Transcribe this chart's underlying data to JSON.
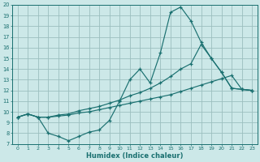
{
  "xlabel": "Humidex (Indice chaleur)",
  "xlim": [
    -0.5,
    23.5
  ],
  "ylim": [
    7,
    20
  ],
  "xticks": [
    0,
    1,
    2,
    3,
    4,
    5,
    6,
    7,
    8,
    9,
    10,
    11,
    12,
    13,
    14,
    15,
    16,
    17,
    18,
    19,
    20,
    21,
    22,
    23
  ],
  "yticks": [
    7,
    8,
    9,
    10,
    11,
    12,
    13,
    14,
    15,
    16,
    17,
    18,
    19,
    20
  ],
  "bg_color": "#cce8e8",
  "grid_color": "#9bbfbf",
  "line_color": "#1a7070",
  "line1_x": [
    0,
    1,
    2,
    3,
    4,
    5,
    6,
    7,
    8,
    9,
    10,
    11,
    12,
    13,
    14,
    15,
    16,
    17,
    18,
    19,
    20,
    21,
    22,
    23
  ],
  "line1_y": [
    9.5,
    9.8,
    9.5,
    8.0,
    7.7,
    7.3,
    7.7,
    8.1,
    8.3,
    9.2,
    11.0,
    13.0,
    14.0,
    12.7,
    15.5,
    19.3,
    19.8,
    18.5,
    16.5,
    15.0,
    13.7,
    12.2,
    12.1,
    12.0
  ],
  "line2_x": [
    0,
    1,
    2,
    3,
    4,
    5,
    6,
    7,
    8,
    9,
    10,
    11,
    12,
    13,
    14,
    15,
    16,
    17,
    18,
    19,
    20,
    21,
    22,
    23
  ],
  "line2_y": [
    9.5,
    9.8,
    9.5,
    9.5,
    9.7,
    9.8,
    10.1,
    10.3,
    10.5,
    10.8,
    11.1,
    11.5,
    11.8,
    12.2,
    12.7,
    13.3,
    14.0,
    14.5,
    16.3,
    15.0,
    13.7,
    12.2,
    12.1,
    12.0
  ],
  "line3_x": [
    0,
    1,
    2,
    3,
    4,
    5,
    6,
    7,
    8,
    9,
    10,
    11,
    12,
    13,
    14,
    15,
    16,
    17,
    18,
    19,
    20,
    21,
    22,
    23
  ],
  "line3_y": [
    9.5,
    9.8,
    9.5,
    9.5,
    9.6,
    9.7,
    9.9,
    10.0,
    10.2,
    10.4,
    10.6,
    10.8,
    11.0,
    11.2,
    11.4,
    11.6,
    11.9,
    12.2,
    12.5,
    12.8,
    13.1,
    13.4,
    12.1,
    12.0
  ],
  "marker": "+"
}
